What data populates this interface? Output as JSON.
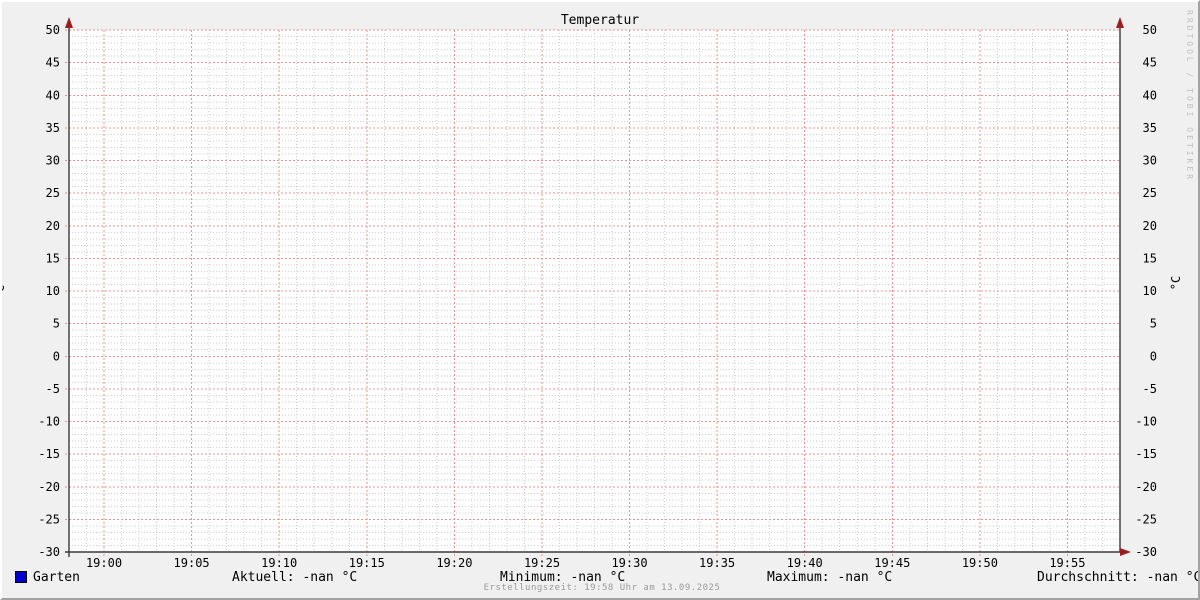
{
  "chart_data": {
    "type": "line",
    "title": "Temperatur",
    "ylabel": "°C",
    "ylabel_right": "°C",
    "xlabel": "",
    "ylim": [
      -30,
      50
    ],
    "y_major_step": 5,
    "y_minor_step": 1,
    "y_tick_labels": [
      "50",
      "45",
      "40",
      "35",
      "30",
      "25",
      "20",
      "15",
      "10",
      "5",
      "0",
      "-5",
      "-10",
      "-15",
      "-20",
      "-25",
      "-30"
    ],
    "x_tick_labels": [
      "19:00",
      "19:05",
      "19:10",
      "19:15",
      "19:20",
      "19:25",
      "19:30",
      "19:35",
      "19:40",
      "19:45",
      "19:50",
      "19:55"
    ],
    "grid": true,
    "legend_position": "bottom",
    "series": [
      {
        "name": "Garten",
        "color": "#0000cc",
        "values": []
      }
    ],
    "colors": {
      "background": "#f0f0f0",
      "canvas": "#ffffff",
      "major_grid": "#ee9393",
      "minor_grid": "#cecece",
      "axis": "#3a3a3a",
      "arrow": "#9b1e1e",
      "text": "#000000"
    }
  },
  "watermark": "RRDTOOL / TOBI OETIKER",
  "legend": {
    "series": [
      {
        "label": "Garten",
        "color": "#0000cc"
      }
    ],
    "stats": [
      {
        "text": "Aktuell: -nan °C"
      },
      {
        "text": "Minimum: -nan °C"
      },
      {
        "text": "Maximum: -nan °C"
      },
      {
        "text": "Durchschnitt: -nan °C"
      }
    ]
  },
  "footer": {
    "created": "Erstellungszeit: 19:58 Uhr am 13.09.2025"
  }
}
